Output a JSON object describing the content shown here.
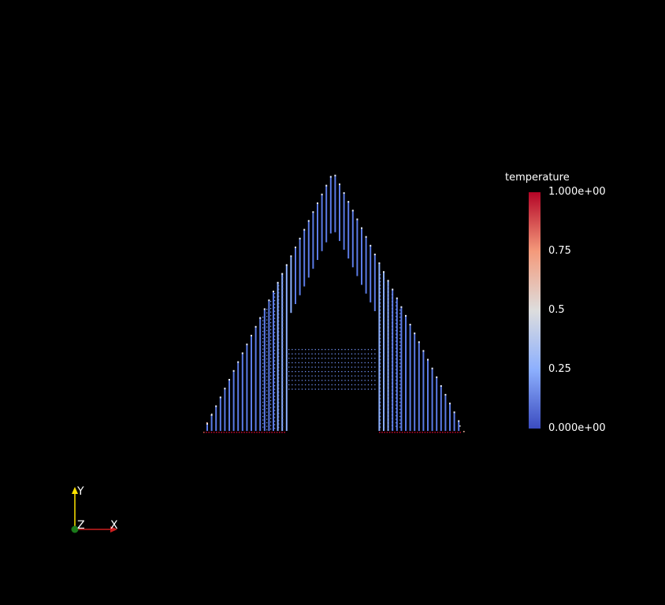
{
  "scene": {
    "background_color": "#000000"
  },
  "legend": {
    "title": "temperature",
    "ticks": [
      "1.000e+00",
      "0.75",
      "0.5",
      "0.25",
      "0.000e+00"
    ],
    "range": [
      0,
      1
    ],
    "colormap": [
      "#3b4cc0",
      "#8db0fe",
      "#dddddd",
      "#f49a7b",
      "#b40426"
    ]
  },
  "axes": {
    "x_label": "X",
    "y_label": "Y",
    "z_label": "Z",
    "x_color": "#cc1f1f",
    "y_color": "#ffe400",
    "z_color": "#1a7a1a"
  },
  "particles": {
    "description_shape": "letter-A",
    "default_temperature": 0.0,
    "boundary_temperature": 1.0
  }
}
